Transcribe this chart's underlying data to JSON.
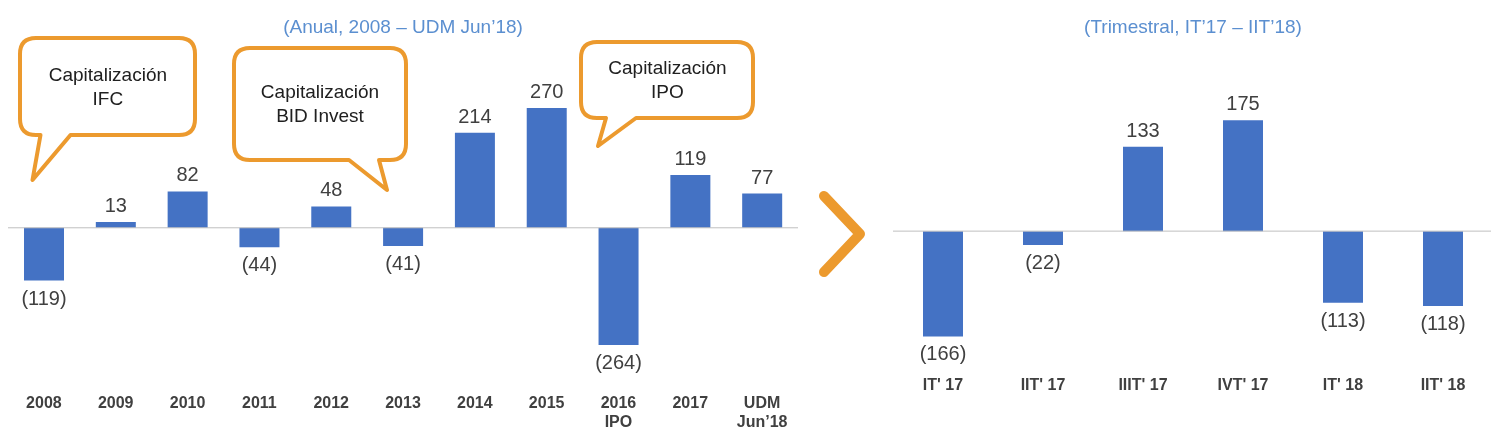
{
  "chart_data": [
    {
      "type": "bar",
      "title": "(Anual, 2008 – UDM Jun’18)",
      "categories": [
        "2008",
        "2009",
        "2010",
        "2011",
        "2012",
        "2013",
        "2014",
        "2015",
        "2016\nIPO",
        "2017",
        "UDM\nJun’18"
      ],
      "values": [
        -119,
        13,
        82,
        -44,
        48,
        -41,
        214,
        270,
        -264,
        119,
        77
      ],
      "value_labels": [
        "(119)",
        "13",
        "82",
        "(44)",
        "48",
        "(41)",
        "214",
        "270",
        "(264)",
        "119",
        "77"
      ],
      "color": "#4472c4",
      "tick_labels": "x",
      "grid": false,
      "legend": false,
      "annotations": [
        "Capitalización\nIFC",
        "Capitalización\nBID Invest",
        "Capitalización\nIPO"
      ]
    },
    {
      "type": "bar",
      "title": "(Trimestral, IT’17 – IIT’18)",
      "categories": [
        "IT' 17",
        "IIT' 17",
        "IIIT' 17",
        "IVT' 17",
        "IT' 18",
        "IIT' 18"
      ],
      "values": [
        -166,
        -22,
        133,
        175,
        -113,
        -118
      ],
      "value_labels": [
        "(166)",
        "(22)",
        "133",
        "175",
        "(113)",
        "(118)"
      ],
      "color": "#4472c4",
      "tick_labels": "x",
      "grid": false,
      "legend": false
    }
  ]
}
